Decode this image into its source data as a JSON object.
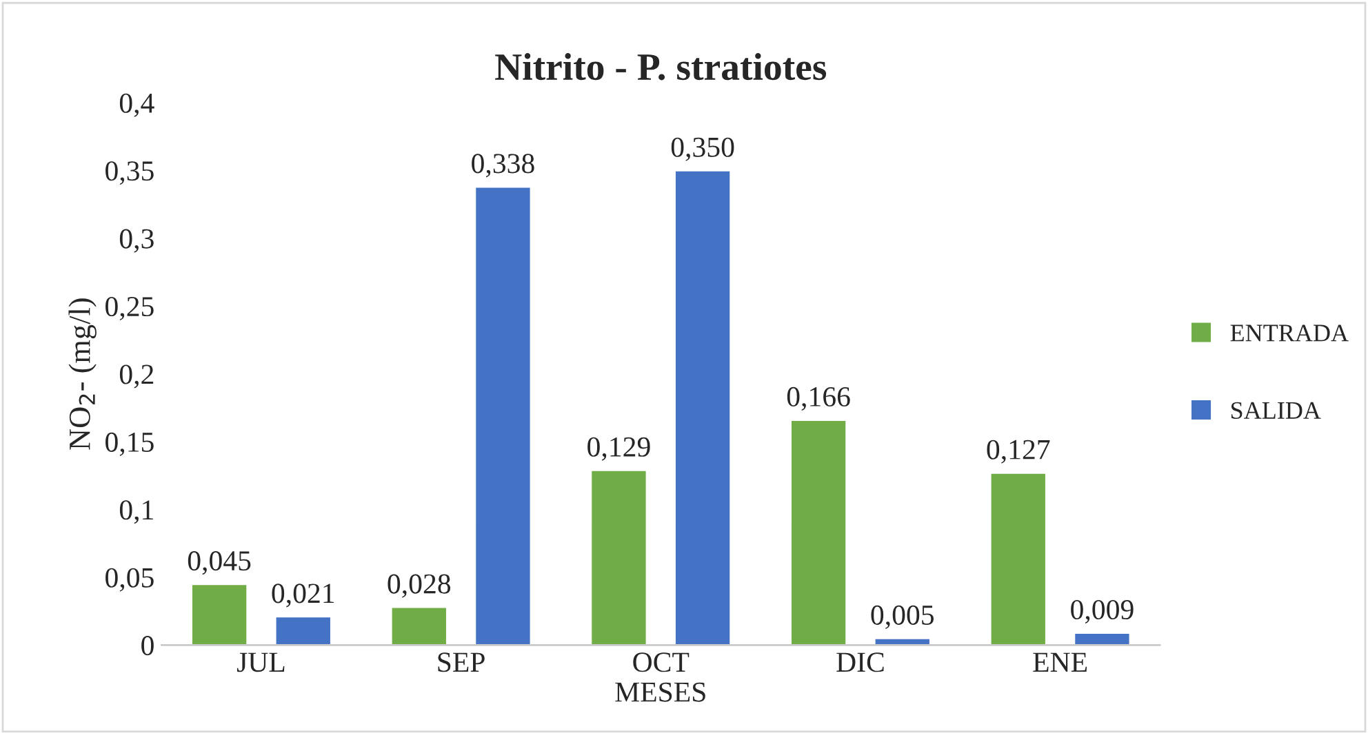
{
  "chart_data": {
    "type": "bar",
    "title": "Nitrito - P. stratiotes",
    "xlabel": "MESES",
    "ylabel": "NO$_{2}$- (mg/l)",
    "categories": [
      "JUL",
      "SEP",
      "OCT",
      "DIC",
      "ENE"
    ],
    "series": [
      {
        "name": "ENTRADA",
        "color": "#70ad47",
        "values": [
          0.045,
          0.028,
          0.129,
          0.166,
          0.127
        ],
        "value_labels": [
          "0,045",
          "0,028",
          "0,129",
          "0,166",
          "0,127"
        ]
      },
      {
        "name": "SALIDA",
        "color": "#4472c4",
        "values": [
          0.021,
          0.338,
          0.35,
          0.005,
          0.009
        ],
        "value_labels": [
          "0,021",
          "0,338",
          "0,350",
          "0,005",
          "0,009"
        ]
      }
    ],
    "ylim": [
      0,
      0.4
    ],
    "yticks": [
      {
        "value": 0,
        "label": "0"
      },
      {
        "value": 0.05,
        "label": "0,05"
      },
      {
        "value": 0.1,
        "label": "0,1"
      },
      {
        "value": 0.15,
        "label": "0,15"
      },
      {
        "value": 0.2,
        "label": "0,2"
      },
      {
        "value": 0.25,
        "label": "0,25"
      },
      {
        "value": 0.3,
        "label": "0,3"
      },
      {
        "value": 0.35,
        "label": "0,35"
      },
      {
        "value": 0.4,
        "label": "0,4"
      }
    ],
    "legend": "right",
    "grid": false
  }
}
